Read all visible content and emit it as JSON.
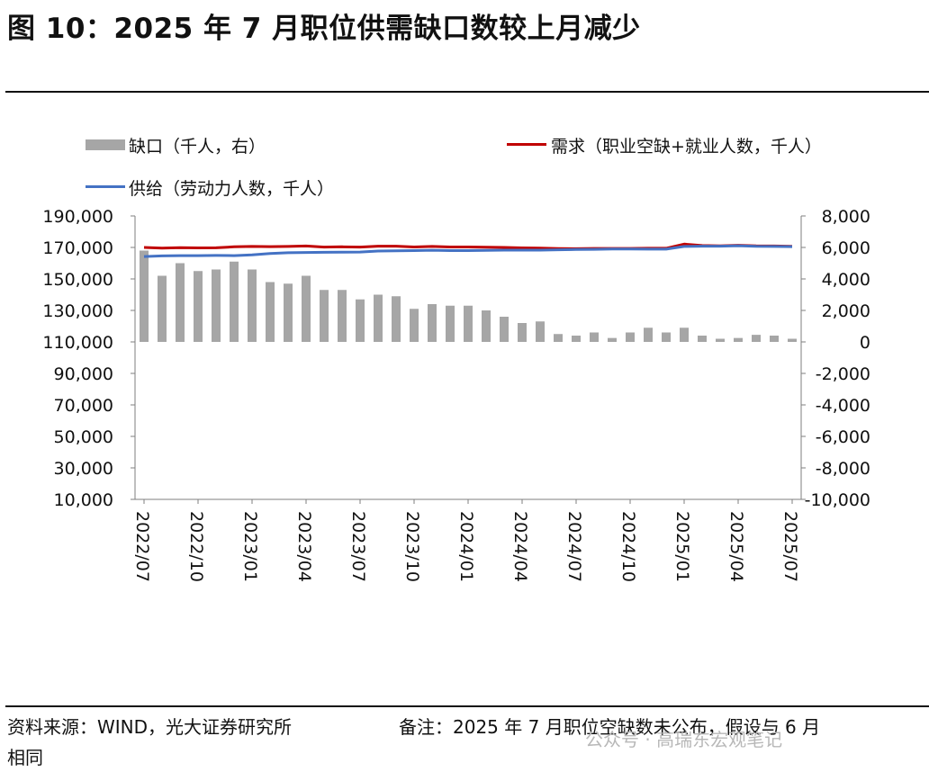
{
  "title": "图 10：2025 年 7 月职位供需缺口数较上月减少",
  "footer": {
    "source": "资料来源：WIND，光大证券研究所",
    "note": "备注：2025 年 7 月职位空缺数未公布，假设与 6 月",
    "note_cont": "相同",
    "watermark": "公众号 · 高瑞东宏观笔记"
  },
  "colors": {
    "gap": "#a6a6a6",
    "demand": "#c00000",
    "supply": "#4472c4"
  },
  "chart_data": {
    "type": "bar+line",
    "x": [
      "2022/07",
      "2022/08",
      "2022/09",
      "2022/10",
      "2022/11",
      "2022/12",
      "2023/01",
      "2023/02",
      "2023/03",
      "2023/04",
      "2023/05",
      "2023/06",
      "2023/07",
      "2023/08",
      "2023/09",
      "2023/10",
      "2023/11",
      "2023/12",
      "2024/01",
      "2024/02",
      "2024/03",
      "2024/04",
      "2024/05",
      "2024/06",
      "2024/07",
      "2024/08",
      "2024/09",
      "2024/10",
      "2024/11",
      "2024/12",
      "2025/01",
      "2025/02",
      "2025/03",
      "2025/04",
      "2025/05",
      "2025/06",
      "2025/07"
    ],
    "x_tick_labels": [
      "2022/07",
      "2022/10",
      "2023/01",
      "2023/04",
      "2023/07",
      "2023/10",
      "2024/01",
      "2024/04",
      "2024/07",
      "2024/10",
      "2025/01",
      "2025/04",
      "2025/07"
    ],
    "series": [
      {
        "name": "缺口（千人，右）",
        "type": "bar",
        "axis": "right",
        "values": [
          5800,
          4200,
          5000,
          4500,
          4600,
          5100,
          4600,
          3800,
          3700,
          4200,
          3300,
          3300,
          2700,
          3000,
          2900,
          2100,
          2400,
          2300,
          2300,
          2000,
          1600,
          1200,
          1300,
          500,
          400,
          600,
          250,
          600,
          900,
          600,
          900,
          400,
          200,
          250,
          450,
          400,
          200
        ]
      },
      {
        "name": "需求（职业空缺+就业人数，千人）",
        "type": "line",
        "axis": "left",
        "values": [
          170000,
          169600,
          169900,
          169700,
          169800,
          170400,
          170600,
          170500,
          170600,
          170900,
          170200,
          170400,
          170200,
          170800,
          170800,
          170300,
          170600,
          170300,
          170300,
          170100,
          170000,
          169700,
          169600,
          169300,
          169200,
          169400,
          169400,
          169400,
          169500,
          169500,
          172100,
          171200,
          171000,
          171400,
          171000,
          170900,
          170700
        ]
      },
      {
        "name": "供给（劳动力人数，千人）",
        "type": "line",
        "axis": "left",
        "values": [
          164200,
          164600,
          164800,
          164800,
          164900,
          164800,
          165300,
          166200,
          166600,
          166800,
          166900,
          167000,
          167100,
          167700,
          167800,
          168000,
          168200,
          168000,
          168000,
          168100,
          168300,
          168300,
          168300,
          168500,
          168700,
          168800,
          169000,
          169000,
          168900,
          168900,
          170600,
          170800,
          170800,
          171100,
          170700,
          170600,
          170500
        ]
      }
    ],
    "y_left": {
      "min": 10000,
      "max": 190000,
      "ticks": [
        "190,000",
        "170,000",
        "150,000",
        "130,000",
        "110,000",
        "90,000",
        "70,000",
        "50,000",
        "30,000",
        "10,000"
      ]
    },
    "y_right": {
      "min": -10000,
      "max": 8000,
      "ticks": [
        "8,000",
        "6,000",
        "4,000",
        "2,000",
        "0",
        "-2,000",
        "-4,000",
        "-6,000",
        "-8,000",
        "-10,000"
      ]
    },
    "grid": false,
    "legend": "top"
  }
}
